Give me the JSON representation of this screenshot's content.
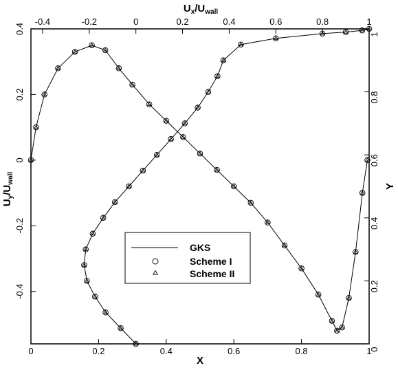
{
  "chart_data": {
    "type": "line",
    "grid": false,
    "legend_placement": "center",
    "axes": {
      "bottom": {
        "label": "X",
        "range": [
          0,
          1
        ],
        "ticks": [
          "0",
          "0.2",
          "0.4",
          "0.6",
          "0.8",
          "1"
        ]
      },
      "top": {
        "label_main": "U",
        "label_sub": "x",
        "label_sep": "/U",
        "label_sub2": "wall",
        "range": [
          -0.45,
          1
        ],
        "ticks": [
          "-0.4",
          "-0.2",
          "0",
          "0.2",
          "0.4",
          "0.6",
          "0.8",
          "1"
        ]
      },
      "left": {
        "label_main": "U",
        "label_sub": "y",
        "label_sep": "/U",
        "label_sub2": "wall",
        "range": [
          -0.56,
          0.4
        ],
        "ticks": [
          "-0.4",
          "-0.2",
          "0",
          "0.2",
          "0.4"
        ]
      },
      "right": {
        "label": "Y",
        "range": [
          0,
          1
        ],
        "ticks": [
          "0",
          "0.2",
          "0.4",
          "0.6",
          "0.8",
          "1"
        ]
      }
    },
    "legend": [
      "GKS",
      "Scheme I",
      "Scheme II"
    ],
    "series": [
      {
        "name": "GKS",
        "curves": [
          {
            "axes": [
              "top",
              "right"
            ],
            "points": [
              [
                0.0,
                0.0
              ],
              [
                -0.065,
                0.05
              ],
              [
                -0.13,
                0.1
              ],
              [
                -0.175,
                0.15
              ],
              [
                -0.21,
                0.2
              ],
              [
                -0.222,
                0.25
              ],
              [
                -0.215,
                0.3
              ],
              [
                -0.185,
                0.35
              ],
              [
                -0.14,
                0.4
              ],
              [
                -0.09,
                0.45
              ],
              [
                -0.03,
                0.5
              ],
              [
                0.03,
                0.55
              ],
              [
                0.09,
                0.6
              ],
              [
                0.15,
                0.65
              ],
              [
                0.21,
                0.7
              ],
              [
                0.265,
                0.75
              ],
              [
                0.31,
                0.8
              ],
              [
                0.35,
                0.85
              ],
              [
                0.375,
                0.9
              ],
              [
                0.45,
                0.95
              ],
              [
                0.6,
                0.97
              ],
              [
                0.8,
                0.985
              ],
              [
                0.9,
                0.99
              ],
              [
                0.97,
                0.995
              ],
              [
                1.0,
                1.0
              ]
            ]
          },
          {
            "axes": [
              "bottom",
              "left"
            ],
            "points": [
              [
                0.0,
                0.0
              ],
              [
                0.015,
                0.1
              ],
              [
                0.04,
                0.2
              ],
              [
                0.08,
                0.28
              ],
              [
                0.13,
                0.33
              ],
              [
                0.18,
                0.35
              ],
              [
                0.22,
                0.335
              ],
              [
                0.26,
                0.28
              ],
              [
                0.3,
                0.23
              ],
              [
                0.35,
                0.17
              ],
              [
                0.4,
                0.12
              ],
              [
                0.45,
                0.07
              ],
              [
                0.5,
                0.02
              ],
              [
                0.55,
                -0.03
              ],
              [
                0.6,
                -0.08
              ],
              [
                0.65,
                -0.13
              ],
              [
                0.7,
                -0.19
              ],
              [
                0.75,
                -0.26
              ],
              [
                0.8,
                -0.33
              ],
              [
                0.85,
                -0.41
              ],
              [
                0.89,
                -0.49
              ],
              [
                0.905,
                -0.52
              ],
              [
                0.92,
                -0.51
              ],
              [
                0.94,
                -0.42
              ],
              [
                0.96,
                -0.28
              ],
              [
                0.98,
                -0.1
              ],
              [
                0.995,
                0.0
              ]
            ]
          }
        ]
      },
      {
        "name": "Scheme I",
        "marker": "circle",
        "curves": [
          {
            "axes": [
              "top",
              "right"
            ],
            "points": [
              [
                0.0,
                0.0
              ],
              [
                -0.065,
                0.05
              ],
              [
                -0.13,
                0.1
              ],
              [
                -0.175,
                0.15
              ],
              [
                -0.21,
                0.2
              ],
              [
                -0.222,
                0.25
              ],
              [
                -0.215,
                0.3
              ],
              [
                -0.185,
                0.35
              ],
              [
                -0.14,
                0.4
              ],
              [
                -0.09,
                0.45
              ],
              [
                -0.03,
                0.5
              ],
              [
                0.03,
                0.55
              ],
              [
                0.09,
                0.6
              ],
              [
                0.15,
                0.65
              ],
              [
                0.21,
                0.7
              ],
              [
                0.265,
                0.75
              ],
              [
                0.31,
                0.8
              ],
              [
                0.35,
                0.85
              ],
              [
                0.375,
                0.9
              ],
              [
                0.45,
                0.95
              ],
              [
                0.6,
                0.97
              ],
              [
                0.8,
                0.985
              ],
              [
                0.9,
                0.99
              ],
              [
                0.97,
                0.995
              ],
              [
                1.0,
                1.0
              ]
            ]
          },
          {
            "axes": [
              "bottom",
              "left"
            ],
            "points": [
              [
                0.0,
                0.0
              ],
              [
                0.015,
                0.1
              ],
              [
                0.04,
                0.2
              ],
              [
                0.08,
                0.28
              ],
              [
                0.13,
                0.33
              ],
              [
                0.18,
                0.35
              ],
              [
                0.22,
                0.335
              ],
              [
                0.26,
                0.28
              ],
              [
                0.3,
                0.23
              ],
              [
                0.35,
                0.17
              ],
              [
                0.4,
                0.12
              ],
              [
                0.45,
                0.07
              ],
              [
                0.5,
                0.02
              ],
              [
                0.55,
                -0.03
              ],
              [
                0.6,
                -0.08
              ],
              [
                0.65,
                -0.13
              ],
              [
                0.7,
                -0.19
              ],
              [
                0.75,
                -0.26
              ],
              [
                0.8,
                -0.33
              ],
              [
                0.85,
                -0.41
              ],
              [
                0.89,
                -0.49
              ],
              [
                0.905,
                -0.52
              ],
              [
                0.92,
                -0.51
              ],
              [
                0.94,
                -0.42
              ],
              [
                0.96,
                -0.28
              ],
              [
                0.98,
                -0.1
              ],
              [
                0.995,
                0.0
              ]
            ]
          }
        ]
      },
      {
        "name": "Scheme II",
        "marker": "triangle",
        "curves": [
          {
            "axes": [
              "top",
              "right"
            ],
            "points": [
              [
                0.0,
                0.0
              ],
              [
                -0.065,
                0.05
              ],
              [
                -0.13,
                0.1
              ],
              [
                -0.175,
                0.15
              ],
              [
                -0.21,
                0.2
              ],
              [
                -0.222,
                0.25
              ],
              [
                -0.215,
                0.3
              ],
              [
                -0.185,
                0.35
              ],
              [
                -0.14,
                0.4
              ],
              [
                -0.09,
                0.45
              ],
              [
                -0.03,
                0.5
              ],
              [
                0.03,
                0.55
              ],
              [
                0.09,
                0.6
              ],
              [
                0.15,
                0.65
              ],
              [
                0.21,
                0.7
              ],
              [
                0.265,
                0.75
              ],
              [
                0.31,
                0.8
              ],
              [
                0.35,
                0.85
              ],
              [
                0.375,
                0.9
              ],
              [
                0.45,
                0.95
              ],
              [
                0.6,
                0.97
              ],
              [
                0.8,
                0.985
              ],
              [
                0.9,
                0.99
              ],
              [
                0.97,
                0.995
              ],
              [
                1.0,
                1.0
              ]
            ]
          },
          {
            "axes": [
              "bottom",
              "left"
            ],
            "points": [
              [
                0.0,
                0.0
              ],
              [
                0.015,
                0.1
              ],
              [
                0.04,
                0.2
              ],
              [
                0.08,
                0.28
              ],
              [
                0.13,
                0.33
              ],
              [
                0.18,
                0.35
              ],
              [
                0.22,
                0.335
              ],
              [
                0.26,
                0.28
              ],
              [
                0.3,
                0.23
              ],
              [
                0.35,
                0.17
              ],
              [
                0.4,
                0.12
              ],
              [
                0.45,
                0.07
              ],
              [
                0.5,
                0.02
              ],
              [
                0.55,
                -0.03
              ],
              [
                0.6,
                -0.08
              ],
              [
                0.65,
                -0.13
              ],
              [
                0.7,
                -0.19
              ],
              [
                0.75,
                -0.26
              ],
              [
                0.8,
                -0.33
              ],
              [
                0.85,
                -0.41
              ],
              [
                0.89,
                -0.49
              ],
              [
                0.905,
                -0.52
              ],
              [
                0.92,
                -0.51
              ],
              [
                0.94,
                -0.42
              ],
              [
                0.96,
                -0.28
              ],
              [
                0.98,
                -0.1
              ],
              [
                0.995,
                0.0
              ]
            ]
          }
        ]
      }
    ]
  }
}
